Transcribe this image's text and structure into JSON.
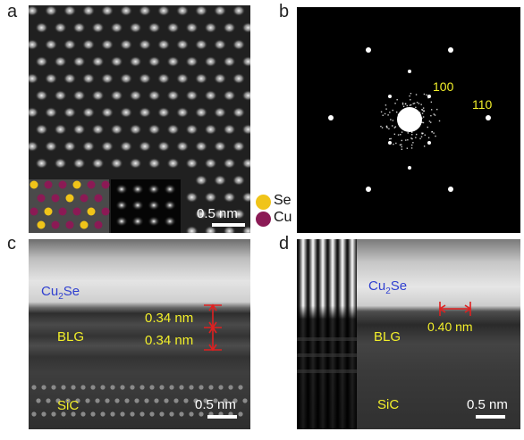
{
  "panels": {
    "a": {
      "label": "a",
      "scale_bar": "0.5 nm",
      "legend": [
        {
          "element": "Se",
          "color": "#f0c419"
        },
        {
          "element": "Cu",
          "color": "#8b1a55"
        }
      ]
    },
    "b": {
      "label": "b",
      "spot_labels": [
        "100",
        "110"
      ]
    },
    "c": {
      "label": "c",
      "layer_cu2se": "Cu2Se",
      "layer_blg": "BLG",
      "layer_sic": "SiC",
      "spacing_top": "0.34 nm",
      "spacing_bottom": "0.34 nm",
      "scale_bar": "0.5 nm"
    },
    "d": {
      "label": "d",
      "layer_cu2se": "Cu2Se",
      "layer_blg": "BLG",
      "layer_sic": "SiC",
      "spacing": "0.40 nm",
      "scale_bar": "0.5 nm"
    }
  },
  "colors": {
    "label_yellow": "#f2ef2a",
    "label_blue": "#2f3fd0",
    "marker_red": "#e02020"
  }
}
